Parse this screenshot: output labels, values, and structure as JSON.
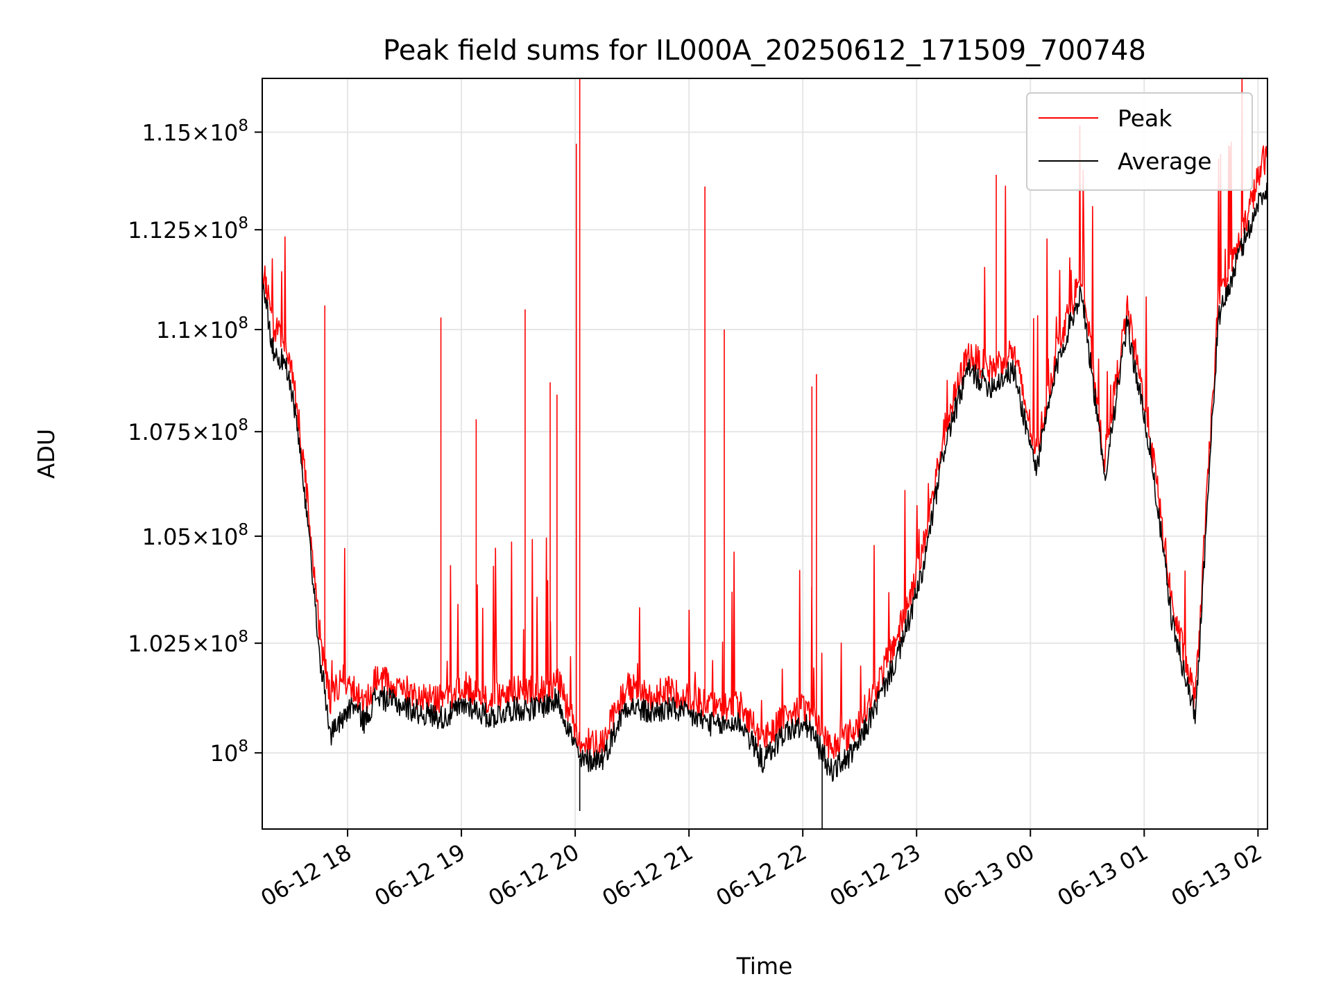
{
  "chart_data": {
    "type": "line",
    "title": "Peak field sums for IL000A_20250612_171509_700748",
    "xlabel": "Time",
    "ylabel": "ADU",
    "x_ticks": [
      "06-12 18",
      "06-12 19",
      "06-12 20",
      "06-12 21",
      "06-12 22",
      "06-12 23",
      "06-13 00",
      "06-13 01",
      "06-13 02"
    ],
    "y_ticks": [
      {
        "value": 100000000,
        "mantissa": "",
        "exp": "8"
      },
      {
        "value": 102500000,
        "mantissa": "1.025",
        "exp": "8"
      },
      {
        "value": 105000000,
        "mantissa": "1.05",
        "exp": "8"
      },
      {
        "value": 107500000,
        "mantissa": "1.075",
        "exp": "8"
      },
      {
        "value": 110000000,
        "mantissa": "1.1",
        "exp": "8"
      },
      {
        "value": 112500000,
        "mantissa": "1.125",
        "exp": "8"
      },
      {
        "value": 115000000,
        "mantissa": "1.15",
        "exp": "8"
      }
    ],
    "xlim": [
      "06-12 17:15",
      "06-13 02:05"
    ],
    "ylim": [
      98300000,
      116400000
    ],
    "y_scale": "log",
    "grid": true,
    "legend_position": "top-right",
    "series": [
      {
        "name": "Peak",
        "color": "#ff0000",
        "x_hours": [
          0,
          0.1,
          0.2,
          0.3,
          0.4,
          0.5,
          0.6,
          0.7,
          0.8,
          0.9,
          1.0,
          1.2,
          1.4,
          1.6,
          1.8,
          2.0,
          2.2,
          2.4,
          2.6,
          2.8,
          3.0,
          3.2,
          3.4,
          3.6,
          3.8,
          4.0,
          4.2,
          4.4,
          4.6,
          4.8,
          5.0,
          5.2,
          5.4,
          5.6,
          5.8,
          6.0,
          6.2,
          6.4,
          6.6,
          6.8,
          7.0,
          7.2,
          7.4,
          7.6,
          7.8,
          8.0,
          8.2,
          8.4,
          8.6,
          8.8
        ],
        "values": [
          111600000,
          110000000,
          109700000,
          108300000,
          105800000,
          102800000,
          101200000,
          101700000,
          101500000,
          101000000,
          101700000,
          101500000,
          101300000,
          101200000,
          101500000,
          101200000,
          101400000,
          101400000,
          101600000,
          100200000,
          100300000,
          101500000,
          101300000,
          101400000,
          101200000,
          101000000,
          101100000,
          100300000,
          100900000,
          101000000,
          100100000,
          100500000,
          101500000,
          102800000,
          104600000,
          107600000,
          109400000,
          109000000,
          109500000,
          107000000,
          109700000,
          111400000,
          106800000,
          110500000,
          107500000,
          103300000,
          101200000,
          110600000,
          112300000,
          114300000
        ],
        "spikes": [
          {
            "x_hours": 2.79,
            "value": 116400000
          },
          {
            "x_hours": 2.76,
            "value": 114700000
          },
          {
            "x_hours": 3.89,
            "value": 113600000
          },
          {
            "x_hours": 6.45,
            "value": 113900000
          },
          {
            "x_hours": 0.55,
            "value": 110600000
          },
          {
            "x_hours": 1.57,
            "value": 110300000
          },
          {
            "x_hours": 2.31,
            "value": 110500000
          },
          {
            "x_hours": 4.06,
            "value": 110000000
          },
          {
            "x_hours": 1.88,
            "value": 107800000
          },
          {
            "x_hours": 4.83,
            "value": 108600000
          },
          {
            "x_hours": 4.87,
            "value": 108900000
          },
          {
            "x_hours": 2.53,
            "value": 108700000
          },
          {
            "x_hours": 2.59,
            "value": 108400000
          }
        ]
      },
      {
        "name": "Average",
        "color": "#000000",
        "x_hours": [
          0,
          0.1,
          0.2,
          0.3,
          0.4,
          0.5,
          0.6,
          0.7,
          0.8,
          0.9,
          1.0,
          1.2,
          1.4,
          1.6,
          1.8,
          2.0,
          2.2,
          2.4,
          2.6,
          2.8,
          3.0,
          3.2,
          3.4,
          3.6,
          3.8,
          4.0,
          4.2,
          4.4,
          4.6,
          4.8,
          5.0,
          5.2,
          5.4,
          5.6,
          5.8,
          6.0,
          6.2,
          6.4,
          6.6,
          6.8,
          7.0,
          7.2,
          7.4,
          7.6,
          7.8,
          8.0,
          8.2,
          8.4,
          8.6,
          8.8
        ],
        "values": [
          111300000,
          109400000,
          109200000,
          107800000,
          105200000,
          102300000,
          100400000,
          100800000,
          101100000,
          100700000,
          101300000,
          101100000,
          100900000,
          100800000,
          101100000,
          100800000,
          101000000,
          101000000,
          101200000,
          99800000,
          99900000,
          101100000,
          100900000,
          101000000,
          100800000,
          100600000,
          100700000,
          99800000,
          100500000,
          100600000,
          99600000,
          100000000,
          101100000,
          102300000,
          104100000,
          107200000,
          109000000,
          108600000,
          109000000,
          106600000,
          109300000,
          111000000,
          106400000,
          110100000,
          107100000,
          102900000,
          100800000,
          110200000,
          112000000,
          113500000
        ],
        "spikes": [
          {
            "x_hours": 4.92,
            "value": 98300000
          },
          {
            "x_hours": 2.79,
            "value": 98700000
          }
        ]
      }
    ]
  }
}
